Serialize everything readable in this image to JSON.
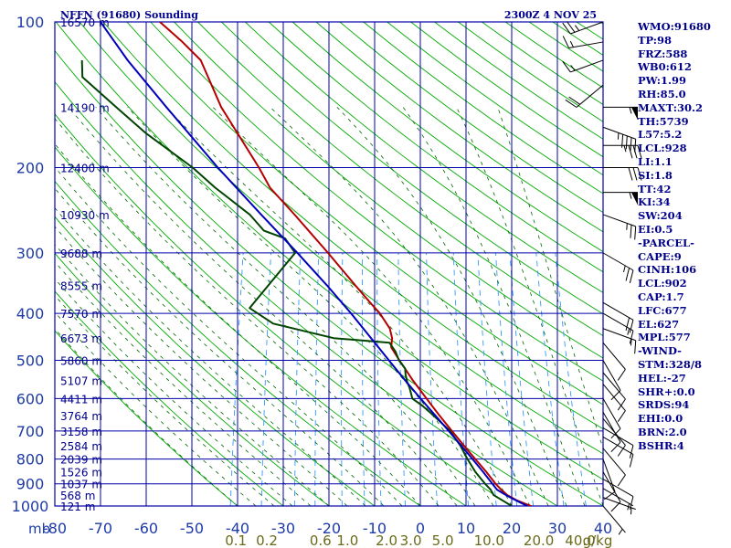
{
  "chart_data": {
    "type": "skew-t log-p sounding",
    "title": "NFFN (91680) Sounding",
    "valid_time": "2300Z  4 NOV 25",
    "pressure_axis": {
      "unit_label": "mb",
      "ticks": [
        100,
        200,
        300,
        400,
        500,
        600,
        700,
        800,
        900,
        1000
      ],
      "range": [
        100,
        1000
      ]
    },
    "temperature_axis": {
      "ticks": [
        -80,
        -70,
        -60,
        -50,
        -40,
        -30,
        -20,
        -10,
        0,
        10,
        20,
        30,
        40
      ],
      "range": [
        -80,
        40
      ]
    },
    "height_labels": [
      {
        "p": 100,
        "label": "16570 m"
      },
      {
        "p": 150,
        "label": "14190 m"
      },
      {
        "p": 200,
        "label": "12400 m"
      },
      {
        "p": 250,
        "label": "10930 m"
      },
      {
        "p": 300,
        "label": "9688 m"
      },
      {
        "p": 350,
        "label": "8555 m"
      },
      {
        "p": 400,
        "label": "7570 m"
      },
      {
        "p": 450,
        "label": "6673 m"
      },
      {
        "p": 500,
        "label": "5860 m"
      },
      {
        "p": 550,
        "label": "5107 m"
      },
      {
        "p": 600,
        "label": "4411 m"
      },
      {
        "p": 650,
        "label": "3764 m"
      },
      {
        "p": 700,
        "label": "3158 m"
      },
      {
        "p": 750,
        "label": "2584 m"
      },
      {
        "p": 800,
        "label": "2039 m"
      },
      {
        "p": 850,
        "label": "1526 m"
      },
      {
        "p": 900,
        "label": "1037 m"
      },
      {
        "p": 950,
        "label": "568 m"
      },
      {
        "p": 1000,
        "label": "121 m"
      }
    ],
    "mixing_ratio_labels": {
      "unit": "g/kg",
      "values": [
        "0.1",
        "0.2",
        "0.6",
        "1.0",
        "2.0",
        "3.0",
        "5.0",
        "10.0",
        "20.0",
        "40.0"
      ]
    },
    "series": [
      {
        "name": "Temperature",
        "color": "#b40000",
        "points": [
          [
            1004,
            24.5
          ],
          [
            1000,
            24.2
          ],
          [
            975,
            21
          ],
          [
            950,
            18.5
          ],
          [
            925,
            16.8
          ],
          [
            900,
            15.3
          ],
          [
            850,
            12.6
          ],
          [
            800,
            9.5
          ],
          [
            750,
            6.3
          ],
          [
            700,
            2.9
          ],
          [
            650,
            -0.7
          ],
          [
            600,
            -4.4
          ],
          [
            550,
            -8.4
          ],
          [
            500,
            -12.4
          ],
          [
            470,
            -14.9
          ],
          [
            450,
            -15.2
          ],
          [
            430,
            -16.2
          ],
          [
            400,
            -19.2
          ],
          [
            380,
            -21.9
          ],
          [
            350,
            -26.1
          ],
          [
            300,
            -33.8
          ],
          [
            250,
            -43.2
          ],
          [
            220,
            -50
          ],
          [
            200,
            -53.5
          ],
          [
            150,
            -65
          ],
          [
            120,
            -72
          ],
          [
            110,
            -77
          ],
          [
            100,
            -83
          ]
        ]
      },
      {
        "name": "Dewpoint",
        "color": "#004400",
        "points": [
          [
            1000,
            20
          ],
          [
            975,
            17.8
          ],
          [
            950,
            15.5
          ],
          [
            925,
            14.5
          ],
          [
            900,
            13
          ],
          [
            850,
            10.2
          ],
          [
            800,
            7.8
          ],
          [
            750,
            5.5
          ],
          [
            700,
            2.5
          ],
          [
            650,
            -2
          ],
          [
            620,
            -5
          ],
          [
            600,
            -7.5
          ],
          [
            570,
            -8.7
          ],
          [
            555,
            -9.5
          ],
          [
            535,
            -10.3
          ],
          [
            520,
            -10.7
          ],
          [
            500,
            -12.5
          ],
          [
            480,
            -13.7
          ],
          [
            460,
            -15.5
          ],
          [
            450,
            -28
          ],
          [
            420,
            -42
          ],
          [
            390,
            -48
          ],
          [
            300,
            -41
          ],
          [
            280,
            -44
          ],
          [
            270,
            -49
          ],
          [
            250,
            -53
          ],
          [
            220,
            -62
          ],
          [
            200,
            -68
          ],
          [
            170,
            -80
          ],
          [
            150,
            -88
          ],
          [
            130,
            -97
          ],
          [
            120,
            -98
          ]
        ]
      },
      {
        "name": "Parcel",
        "color": "#0000bb",
        "points": [
          [
            1000,
            23.4
          ],
          [
            975,
            20.8
          ],
          [
            950,
            18.2
          ],
          [
            925,
            15.9
          ],
          [
            900,
            14.6
          ],
          [
            850,
            11.9
          ],
          [
            800,
            8.9
          ],
          [
            750,
            5.7
          ],
          [
            700,
            2.2
          ],
          [
            650,
            -1.6
          ],
          [
            600,
            -5.7
          ],
          [
            550,
            -10.1
          ],
          [
            500,
            -14.7
          ],
          [
            450,
            -19.8
          ],
          [
            400,
            -25.5
          ],
          [
            350,
            -32.3
          ],
          [
            300,
            -40.5
          ],
          [
            250,
            -50.5
          ],
          [
            200,
            -62.5
          ],
          [
            150,
            -77
          ],
          [
            120,
            -88
          ],
          [
            100,
            -96
          ]
        ]
      }
    ],
    "wind_barbs": [
      {
        "p": 100,
        "dir": 70,
        "spd": 25
      },
      {
        "p": 110,
        "dir": 80,
        "spd": 15
      },
      {
        "p": 120,
        "dir": 70,
        "spd": 15
      },
      {
        "p": 135,
        "dir": 50,
        "spd": 20
      },
      {
        "p": 150,
        "dir": 270,
        "spd": 55
      },
      {
        "p": 165,
        "dir": 290,
        "spd": 45
      },
      {
        "p": 180,
        "dir": 270,
        "spd": 35
      },
      {
        "p": 200,
        "dir": 270,
        "spd": 30
      },
      {
        "p": 225,
        "dir": 270,
        "spd": 55
      },
      {
        "p": 250,
        "dir": 290,
        "spd": 25
      },
      {
        "p": 300,
        "dir": 300,
        "spd": 25
      },
      {
        "p": 380,
        "dir": 300,
        "spd": 20
      },
      {
        "p": 400,
        "dir": 300,
        "spd": 15
      },
      {
        "p": 430,
        "dir": 290,
        "spd": 15
      },
      {
        "p": 460,
        "dir": 320,
        "spd": 10
      },
      {
        "p": 500,
        "dir": 330,
        "spd": 10
      },
      {
        "p": 530,
        "dir": 320,
        "spd": 10
      },
      {
        "p": 560,
        "dir": 320,
        "spd": 10
      },
      {
        "p": 600,
        "dir": 330,
        "spd": 10
      },
      {
        "p": 640,
        "dir": 330,
        "spd": 10
      },
      {
        "p": 660,
        "dir": 320,
        "spd": 10
      },
      {
        "p": 690,
        "dir": 300,
        "spd": 10
      },
      {
        "p": 720,
        "dir": 300,
        "spd": 10
      },
      {
        "p": 760,
        "dir": 320,
        "spd": 10
      },
      {
        "p": 800,
        "dir": 340,
        "spd": 10
      },
      {
        "p": 850,
        "dir": 330,
        "spd": 10
      },
      {
        "p": 880,
        "dir": 300,
        "spd": 10
      },
      {
        "p": 920,
        "dir": 300,
        "spd": 5
      },
      {
        "p": 960,
        "dir": 290,
        "spd": 5
      },
      {
        "p": 1004,
        "dir": 320,
        "spd": 5
      }
    ],
    "colors": {
      "isotherm": "#0000aa",
      "dry_adiabat": "#00aa00",
      "moist_adiabat": "#006600",
      "mixing_ratio": "#3399ff",
      "axis_label": "#1e3ba8",
      "mixing_label": "#6b6b1a"
    }
  },
  "stats": [
    "WMO:91680",
    "TP:98",
    "FRZ:588",
    "WB0:612",
    "PW:1.99",
    "RH:85.0",
    "MAXT:30.2",
    "TH:5739",
    "L57:5.2",
    "LCL:928",
    "LI:1.1",
    "SI:1.8",
    "TT:42",
    "KI:34",
    "SW:204",
    "EI:0.5",
    "-PARCEL-",
    "CAPE:9",
    "CINH:106",
    "LCL:902",
    "CAP:1.7",
    "LFC:677",
    "EL:627",
    "MPL:577",
    "-WIND-",
    "STM:328/8",
    "HEL:-27",
    "SHR+:0.0",
    "SRDS:94",
    "EHI:0.0",
    "BRN:2.0",
    "BSHR:4"
  ]
}
